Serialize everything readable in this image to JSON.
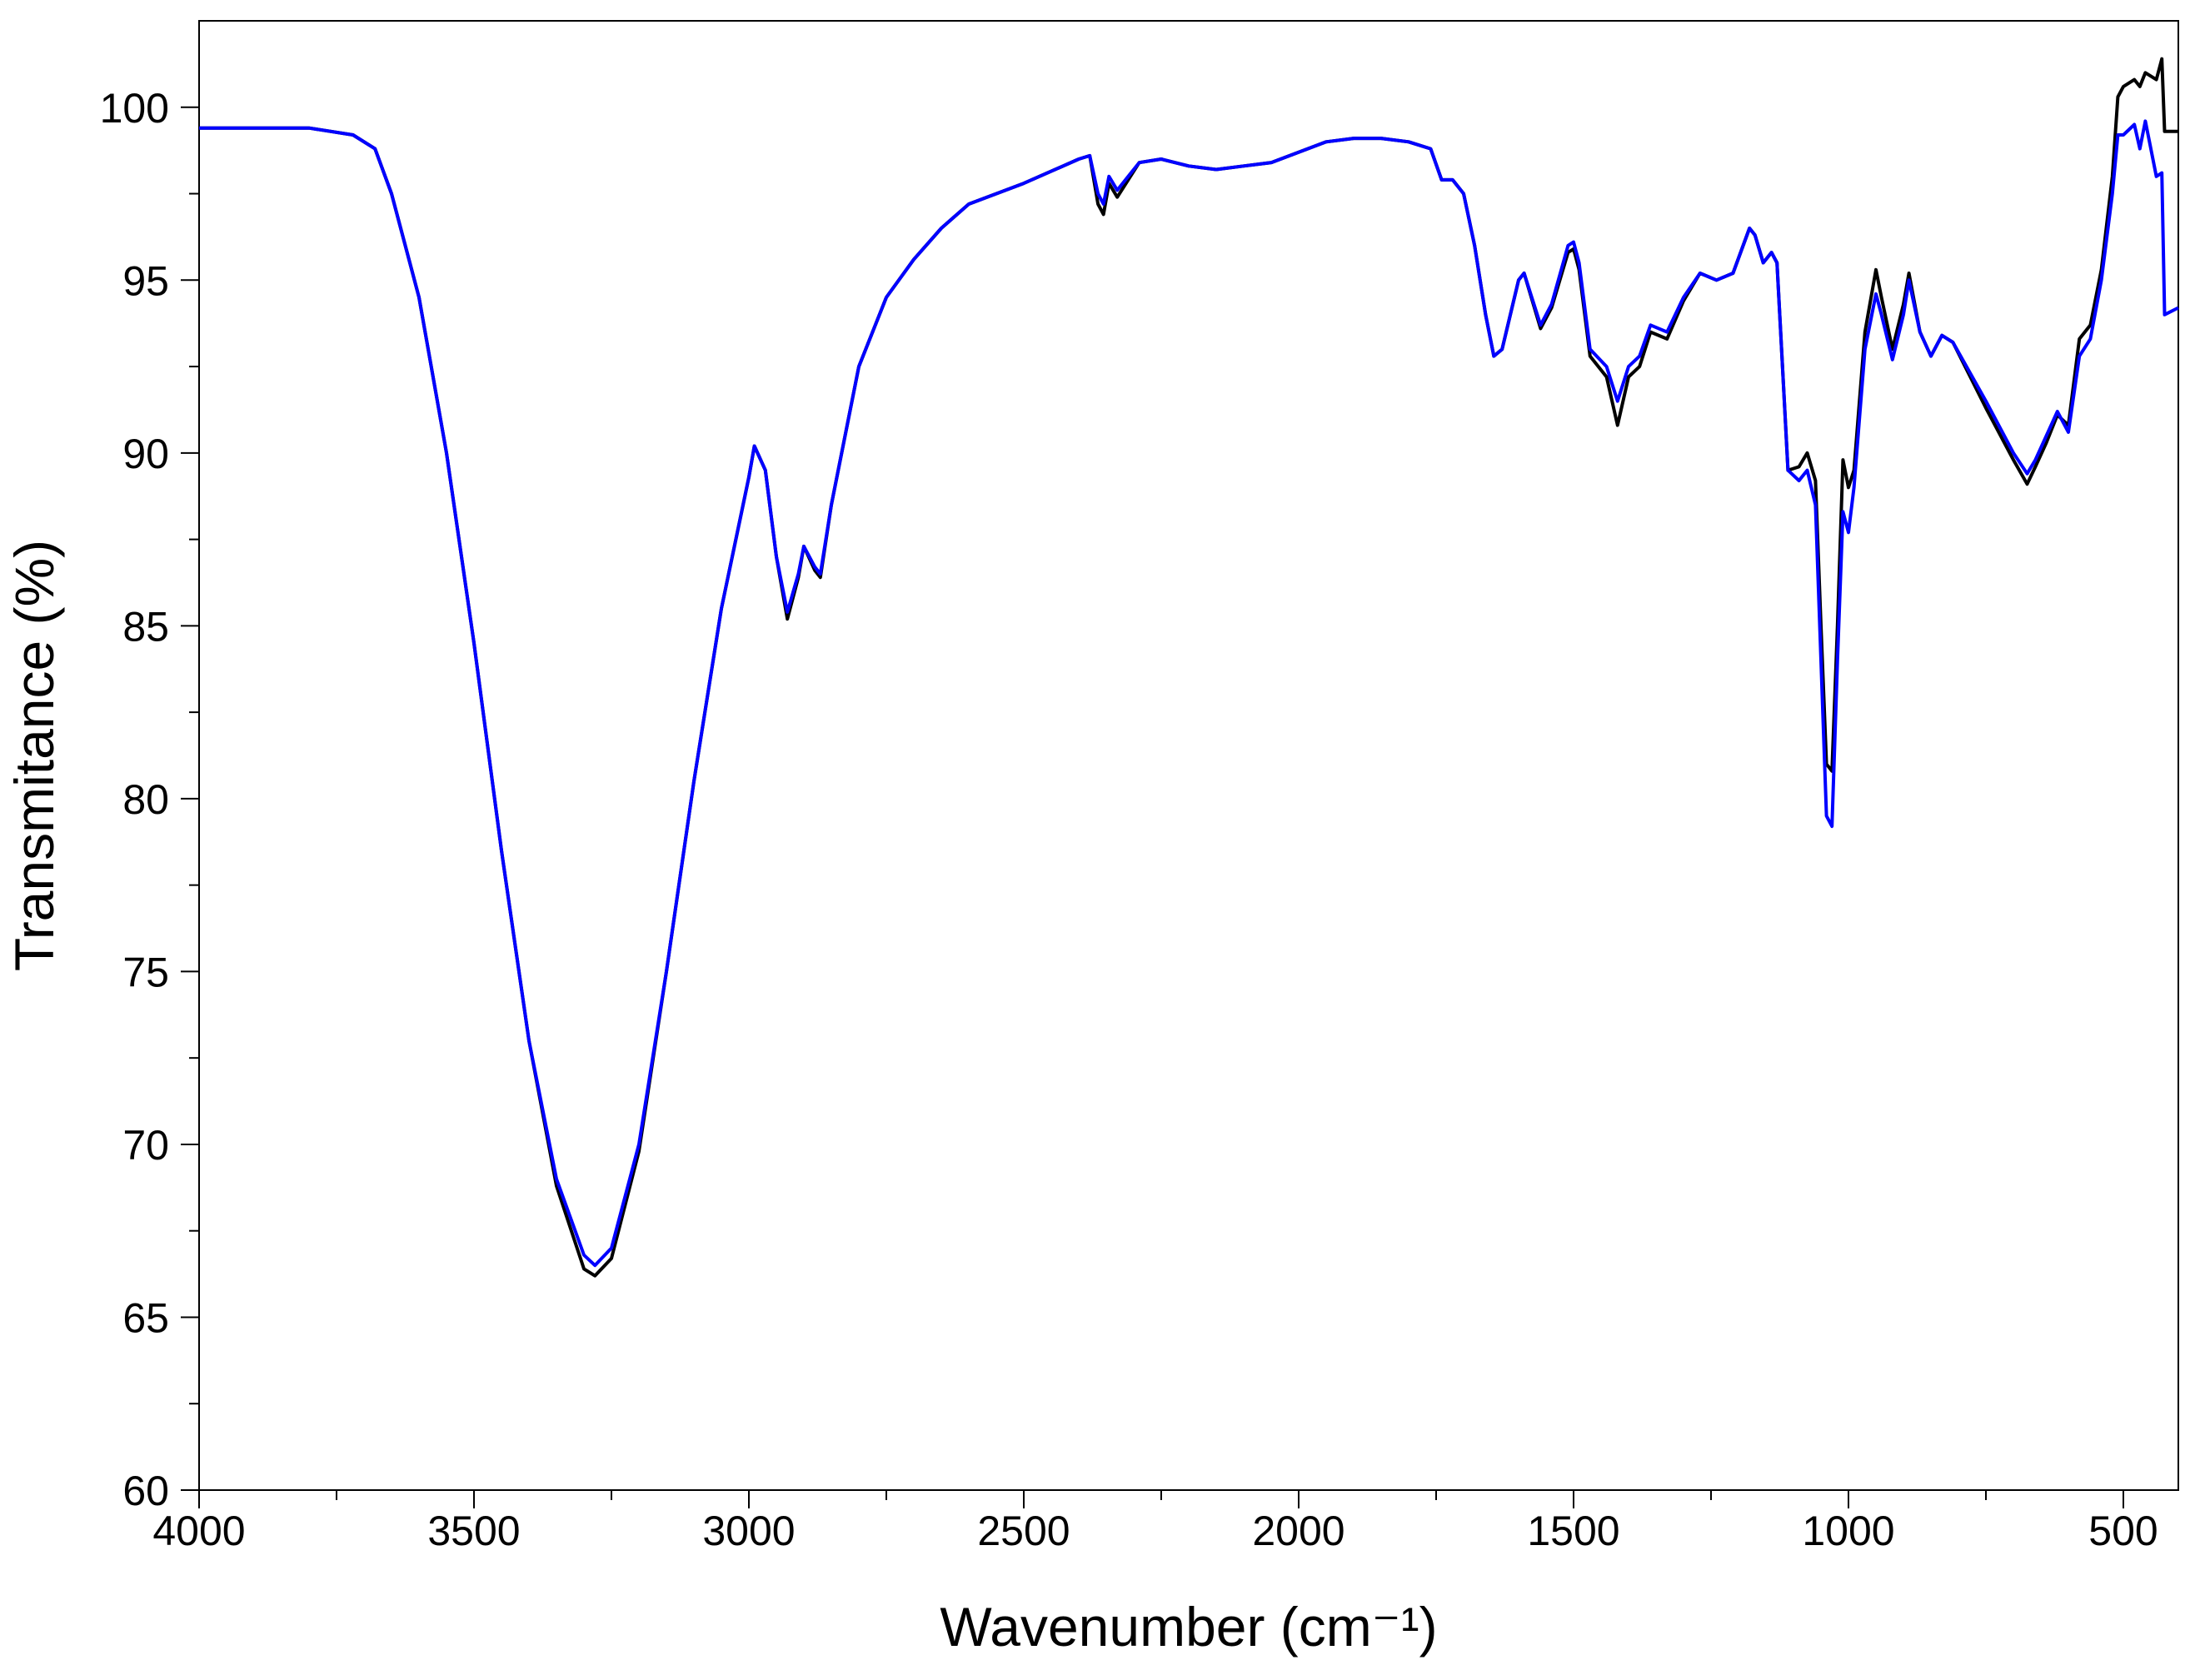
{
  "chart_data": {
    "type": "line",
    "x_label": "Wavenumber (cm⁻¹)",
    "y_label": "Transmitance (%)",
    "xlim": [
      4000,
      400
    ],
    "ylim": [
      60,
      102.5
    ],
    "xticks": [
      4000,
      3500,
      3000,
      2500,
      2000,
      1500,
      1000,
      500
    ],
    "xminorticks": [
      3750,
      3250,
      2750,
      2250,
      1750,
      1250,
      750
    ],
    "yticks": [
      60,
      65,
      70,
      75,
      80,
      85,
      90,
      95,
      100
    ],
    "yminorticks": [
      62.5,
      67.5,
      72.5,
      77.5,
      82.5,
      87.5,
      92.5,
      97.5
    ],
    "x": [
      4000,
      3800,
      3720,
      3680,
      3650,
      3600,
      3550,
      3500,
      3450,
      3400,
      3350,
      3300,
      3280,
      3250,
      3200,
      3150,
      3100,
      3050,
      3000,
      2990,
      2970,
      2950,
      2930,
      2910,
      2900,
      2880,
      2870,
      2850,
      2800,
      2750,
      2700,
      2650,
      2600,
      2500,
      2400,
      2380,
      2365,
      2355,
      2345,
      2330,
      2310,
      2290,
      2250,
      2200,
      2150,
      2100,
      2050,
      2000,
      1950,
      1900,
      1850,
      1800,
      1760,
      1740,
      1720,
      1700,
      1680,
      1660,
      1645,
      1630,
      1600,
      1590,
      1560,
      1540,
      1510,
      1500,
      1490,
      1470,
      1440,
      1420,
      1400,
      1380,
      1360,
      1330,
      1300,
      1270,
      1240,
      1210,
      1180,
      1170,
      1155,
      1140,
      1130,
      1110,
      1090,
      1075,
      1060,
      1050,
      1040,
      1030,
      1020,
      1010,
      1000,
      990,
      970,
      950,
      940,
      920,
      900,
      890,
      870,
      850,
      830,
      810,
      750,
      700,
      675,
      660,
      640,
      620,
      600,
      580,
      560,
      540,
      520,
      510,
      500,
      480,
      470,
      460,
      440,
      430,
      425,
      400
    ],
    "series": [
      {
        "color": "#000000",
        "values": [
          99.4,
          99.4,
          99.2,
          98.8,
          97.5,
          94.5,
          90,
          84.5,
          78.5,
          73,
          68.8,
          66.4,
          66.2,
          66.7,
          69.8,
          75,
          80.5,
          85.5,
          89.3,
          90.2,
          89.5,
          87,
          85.2,
          86.4,
          87.3,
          86.6,
          86.4,
          88.5,
          92.5,
          94.5,
          95.6,
          96.5,
          97.2,
          97.8,
          98.5,
          98.6,
          97.2,
          96.9,
          97.8,
          97.4,
          97.9,
          98.4,
          98.5,
          98.3,
          98.2,
          98.3,
          98.4,
          98.7,
          99,
          99.1,
          99.1,
          99,
          98.8,
          97.9,
          97.9,
          97.5,
          96,
          94,
          92.8,
          93,
          95,
          95.2,
          93.6,
          94.2,
          95.8,
          95.9,
          95.3,
          92.8,
          92.2,
          90.8,
          92.2,
          92.5,
          93.5,
          93.3,
          94.4,
          95.2,
          95,
          95.2,
          96.5,
          96.3,
          95.5,
          95.8,
          95.5,
          89.5,
          89.6,
          90,
          89.2,
          85,
          81,
          80.8,
          85,
          89.8,
          89,
          89.5,
          93.5,
          95.3,
          94.5,
          93,
          94.3,
          95.2,
          93.5,
          92.8,
          93.4,
          93.2,
          91.3,
          89.8,
          89.1,
          89.6,
          90.3,
          91.1,
          90.8,
          93.3,
          93.7,
          95.3,
          98,
          100.3,
          100.6,
          100.8,
          100.6,
          101,
          100.8,
          101.4,
          99.3,
          99.3
        ]
      },
      {
        "color": "#0000ff",
        "values": [
          99.4,
          99.4,
          99.2,
          98.8,
          97.5,
          94.5,
          90,
          84.5,
          78.5,
          73,
          69,
          66.8,
          66.5,
          67,
          70,
          75,
          80.5,
          85.5,
          89.3,
          90.2,
          89.5,
          87,
          85.4,
          86.5,
          87.3,
          86.7,
          86.5,
          88.5,
          92.5,
          94.5,
          95.6,
          96.5,
          97.2,
          97.8,
          98.5,
          98.6,
          97.5,
          97.2,
          98,
          97.6,
          98,
          98.4,
          98.5,
          98.3,
          98.2,
          98.3,
          98.4,
          98.7,
          99,
          99.1,
          99.1,
          99,
          98.8,
          97.9,
          97.9,
          97.5,
          96,
          94,
          92.8,
          93,
          95,
          95.2,
          93.7,
          94.3,
          96,
          96.1,
          95.5,
          93,
          92.5,
          91.5,
          92.5,
          92.8,
          93.7,
          93.5,
          94.5,
          95.2,
          95,
          95.2,
          96.5,
          96.3,
          95.5,
          95.8,
          95.5,
          89.5,
          89.2,
          89.5,
          88.5,
          84,
          79.5,
          79.2,
          84,
          88.3,
          87.7,
          89,
          93,
          94.6,
          94,
          92.7,
          94,
          95,
          93.5,
          92.8,
          93.4,
          93.2,
          91.5,
          90,
          89.4,
          89.8,
          90.5,
          91.2,
          90.6,
          92.8,
          93.3,
          95,
          97.5,
          99.2,
          99.2,
          99.5,
          98.8,
          99.6,
          98,
          98.1,
          94,
          94.2
        ]
      }
    ]
  }
}
